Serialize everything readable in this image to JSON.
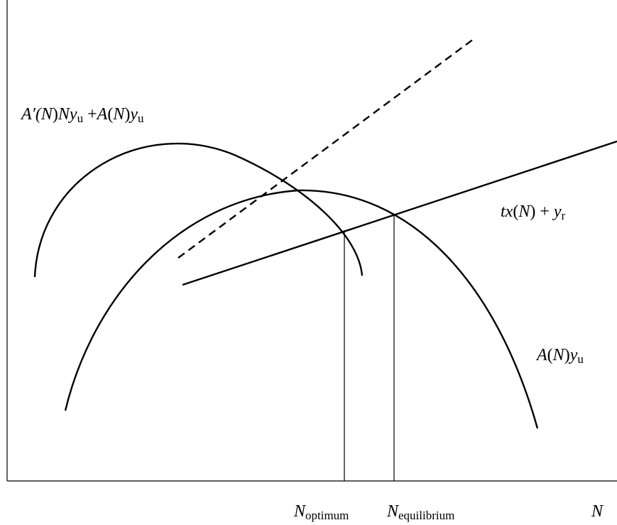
{
  "diagram": {
    "axes": {
      "x_label_symbol": "N"
    },
    "labels": {
      "marginal_curve": {
        "p1": "A′(",
        "p2": "N",
        "p3": ")",
        "p4": "Ny",
        "p5": "u",
        "p6": " +",
        "p7": "A",
        "p8": "(",
        "p9": "N",
        "p10": ")",
        "p11": "y",
        "p12": "u"
      },
      "average_curve": {
        "p1": "A",
        "p2": "(",
        "p3": "N",
        "p4": ")",
        "p5": "y",
        "p6": "u"
      },
      "cost_line": {
        "p1": "tx",
        "p2": "(",
        "p3": "N",
        "p4": ") + ",
        "p5": "y",
        "p6": "r"
      },
      "n_optimum": {
        "symbol": "N",
        "subscript": "optimum"
      },
      "n_equilibrium": {
        "symbol": "N",
        "subscript": "equilibrium"
      }
    },
    "colors": {
      "stroke": "#000000",
      "background": "#ffffff"
    }
  }
}
